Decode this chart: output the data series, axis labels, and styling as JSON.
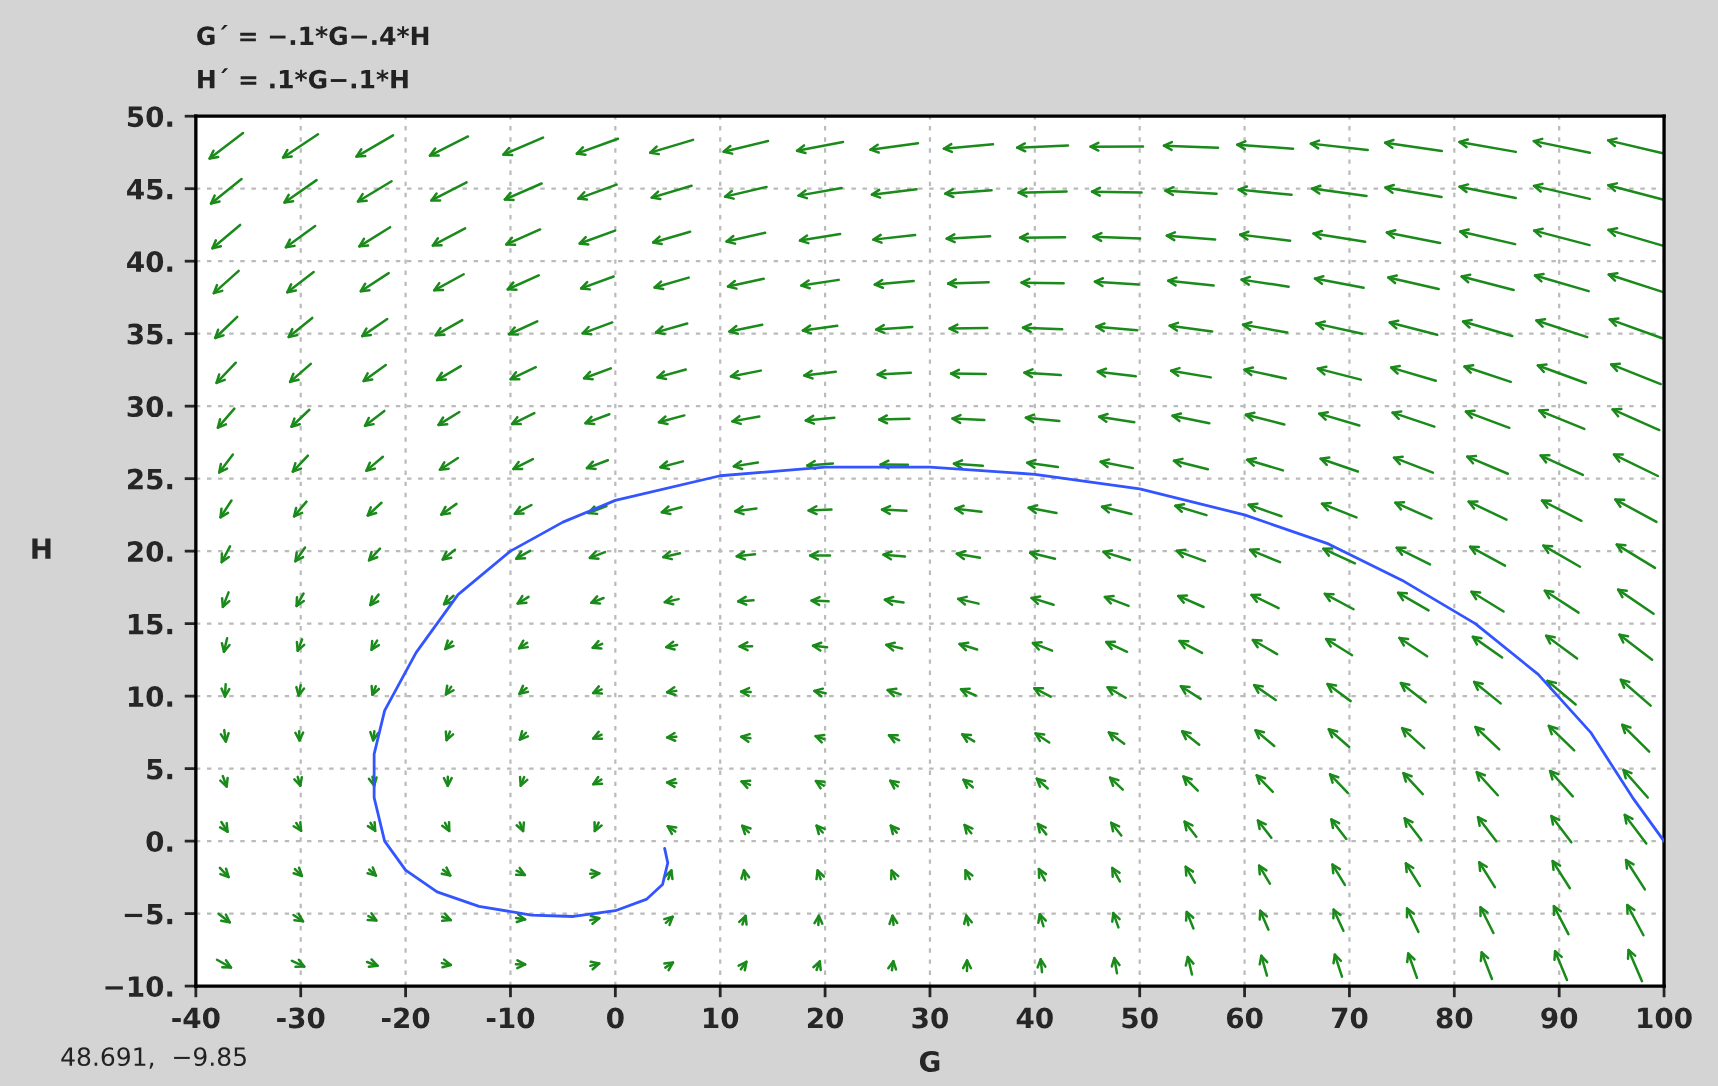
{
  "chart_data": {
    "type": "line",
    "xlabel": "G",
    "ylabel": "H",
    "annotations": [
      "G´ = −.1*G−.4*H",
      "H´ = .1*G−.1*H",
      "48.691,  −9.85"
    ],
    "series": [
      {
        "color": "#3355ff",
        "x": [
          100,
          97,
          93,
          88,
          82,
          75,
          68,
          60,
          50,
          40,
          30,
          20,
          10,
          0,
          -5,
          -10,
          -15,
          -19,
          -22,
          -23,
          -23,
          -22,
          -20,
          -17,
          -13,
          -8,
          -4,
          0,
          3,
          4.5,
          5,
          4.7
        ],
        "values": [
          0,
          3,
          7.5,
          11.5,
          15,
          18,
          20.5,
          22.5,
          24.3,
          25.3,
          25.8,
          25.8,
          25.2,
          23.5,
          22,
          20,
          17,
          13,
          9,
          6,
          3,
          0,
          -2,
          -3.5,
          -4.5,
          -5.1,
          -5.2,
          -4.8,
          -4,
          -3,
          -1.5,
          -0.5
        ]
      }
    ],
    "xlim": [
      -40,
      100
    ],
    "xticks": [
      -40,
      -30,
      -20,
      -10,
      0,
      10,
      20,
      30,
      40,
      50,
      60,
      70,
      80,
      90,
      100
    ],
    "ylim": [
      -10,
      50
    ],
    "yticks": [
      {
        "value": -10,
        "label": "−10."
      },
      {
        "value": -5,
        "label": "−5."
      },
      {
        "value": 0,
        "label": "0."
      },
      {
        "value": 5,
        "label": "5."
      },
      {
        "value": 10,
        "label": "10."
      },
      {
        "value": 15,
        "label": "15."
      },
      {
        "value": 20,
        "label": "20."
      },
      {
        "value": 25,
        "label": "25."
      },
      {
        "value": 30,
        "label": "30."
      },
      {
        "value": 35,
        "label": "35."
      },
      {
        "value": 40,
        "label": "40."
      },
      {
        "value": 45,
        "label": "45."
      },
      {
        "value": 50,
        "label": "50."
      }
    ],
    "grid": true,
    "legend": false
  }
}
